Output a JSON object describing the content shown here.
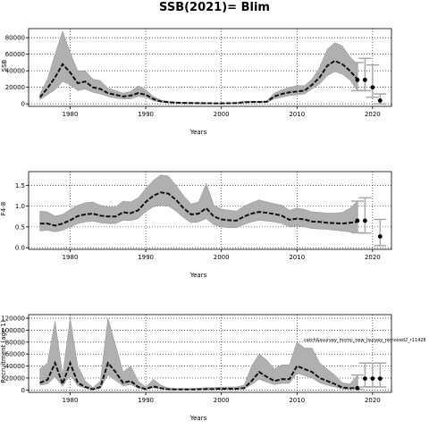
{
  "figure_title": "SSB(2021)= Blim",
  "chart_data": [
    {
      "type": "line",
      "xlabel": "Years",
      "ylabel": "SSB",
      "xlim": [
        1974.5,
        2022.5
      ],
      "ylim": [
        -3000,
        91000
      ],
      "xticks": [
        1980,
        1990,
        2000,
        2010,
        2020
      ],
      "yticks": [
        0,
        20000,
        40000,
        60000,
        80000
      ],
      "ytick_labels": [
        "0",
        "20000",
        "40000",
        "60000",
        "80000"
      ],
      "grid": true,
      "series": [
        {
          "x": [
            1976,
            1977,
            1978,
            1979,
            1980,
            1981,
            1982,
            1983,
            1984,
            1985,
            1986,
            1987,
            1988,
            1989,
            1990,
            1991,
            1992,
            1993,
            1994,
            1995,
            1996,
            1997,
            1998,
            1999,
            2000,
            2001,
            2002,
            2003,
            2004,
            2005,
            2006,
            2007,
            2008,
            2009,
            2010,
            2011,
            2012,
            2013,
            2014,
            2015,
            2016,
            2017,
            2018
          ],
          "y": [
            8000,
            19000,
            32000,
            48000,
            38000,
            25000,
            27000,
            20000,
            18000,
            13000,
            11000,
            9000,
            10000,
            13000,
            11000,
            6000,
            3000,
            2000,
            1500,
            1200,
            1000,
            900,
            800,
            700,
            700,
            800,
            1000,
            2000,
            2200,
            2200,
            2500,
            9000,
            12000,
            14000,
            15000,
            16000,
            23000,
            32000,
            46000,
            52000,
            48000,
            40000,
            30000
          ],
          "lower": [
            5000,
            11000,
            17000,
            27000,
            23000,
            16000,
            18000,
            14000,
            12000,
            9000,
            7000,
            6000,
            6000,
            9000,
            8000,
            4000,
            2000,
            1200,
            900,
            700,
            600,
            500,
            400,
            400,
            400,
            500,
            600,
            1300,
            1500,
            1500,
            1700,
            6000,
            8000,
            10000,
            11000,
            12000,
            18000,
            24000,
            34000,
            39000,
            36000,
            29000,
            16000
          ],
          "upper": [
            12000,
            30000,
            60000,
            88000,
            62000,
            40000,
            40000,
            30000,
            28000,
            19000,
            16000,
            13000,
            15000,
            22000,
            17000,
            9000,
            4500,
            3000,
            2200,
            1900,
            1600,
            1400,
            1300,
            1100,
            1100,
            1200,
            1500,
            3000,
            3200,
            3200,
            3600,
            13000,
            17000,
            20000,
            22000,
            22000,
            30000,
            44000,
            66000,
            74000,
            70000,
            57000,
            48000
          ]
        }
      ],
      "predicted": {
        "x": [
          2018,
          2019,
          2020,
          2021
        ],
        "y": [
          29000,
          29000,
          20000,
          4000
        ],
        "lower": [
          16000,
          16000,
          8000,
          0
        ],
        "upper": [
          50000,
          55000,
          47000,
          12000
        ]
      }
    },
    {
      "type": "line",
      "xlabel": "Years",
      "ylabel": "F4-8",
      "xlim": [
        1974.5,
        2022.5
      ],
      "ylim": [
        -0.04,
        1.83
      ],
      "xticks": [
        1980,
        1990,
        2000,
        2010,
        2020
      ],
      "yticks": [
        0.0,
        0.5,
        1.0,
        1.5
      ],
      "ytick_labels": [
        "0.0",
        "0.5",
        "1.0",
        "1.5"
      ],
      "grid": true,
      "series": [
        {
          "x": [
            1976,
            1977,
            1978,
            1979,
            1980,
            1981,
            1982,
            1983,
            1984,
            1985,
            1986,
            1987,
            1988,
            1989,
            1990,
            1991,
            1992,
            1993,
            1994,
            1995,
            1996,
            1997,
            1998,
            1999,
            2000,
            2001,
            2002,
            2003,
            2004,
            2005,
            2006,
            2007,
            2008,
            2009,
            2010,
            2011,
            2012,
            2013,
            2014,
            2015,
            2016,
            2017,
            2018
          ],
          "y": [
            0.58,
            0.58,
            0.53,
            0.58,
            0.66,
            0.76,
            0.8,
            0.82,
            0.77,
            0.75,
            0.75,
            0.85,
            0.83,
            0.9,
            1.1,
            1.25,
            1.33,
            1.3,
            1.15,
            0.95,
            0.8,
            0.82,
            0.95,
            0.75,
            0.68,
            0.66,
            0.65,
            0.75,
            0.82,
            0.86,
            0.84,
            0.81,
            0.77,
            0.67,
            0.7,
            0.68,
            0.63,
            0.62,
            0.6,
            0.59,
            0.58,
            0.6,
            0.62
          ],
          "lower": [
            0.4,
            0.42,
            0.38,
            0.42,
            0.5,
            0.58,
            0.62,
            0.64,
            0.6,
            0.58,
            0.58,
            0.66,
            0.65,
            0.7,
            0.87,
            0.98,
            1.02,
            1.0,
            0.88,
            0.72,
            0.6,
            0.62,
            0.7,
            0.55,
            0.5,
            0.48,
            0.48,
            0.56,
            0.62,
            0.66,
            0.64,
            0.62,
            0.58,
            0.5,
            0.52,
            0.5,
            0.46,
            0.45,
            0.44,
            0.42,
            0.4,
            0.38,
            0.35
          ],
          "upper": [
            0.88,
            0.86,
            0.76,
            0.8,
            0.92,
            1.02,
            1.08,
            1.1,
            1.02,
            0.98,
            0.98,
            1.12,
            1.1,
            1.2,
            1.42,
            1.62,
            1.75,
            1.72,
            1.5,
            1.25,
            1.05,
            1.1,
            1.55,
            1.02,
            0.93,
            0.9,
            0.88,
            1.0,
            1.08,
            1.15,
            1.1,
            1.06,
            1.02,
            0.9,
            0.95,
            0.92,
            0.86,
            0.85,
            0.83,
            0.83,
            0.85,
            0.95,
            1.12
          ]
        }
      ],
      "predicted": {
        "x": [
          2018,
          2019,
          2021
        ],
        "y": [
          0.65,
          0.65,
          0.27
        ],
        "lower": [
          0.36,
          0.35,
          0.05
        ],
        "upper": [
          1.12,
          1.2,
          0.68
        ]
      }
    },
    {
      "type": "line",
      "xlabel": "Years",
      "ylabel": "Recruitment (age 1)",
      "annotation": "catch&ssurvey_mcmc_new_lsurvey_removed2_r11428",
      "xlim": [
        1974.5,
        2022.5
      ],
      "ylim": [
        -4000,
        126000
      ],
      "xticks": [
        1980,
        1990,
        2000,
        2010,
        2020
      ],
      "yticks": [
        0,
        20000,
        40000,
        60000,
        80000,
        100000,
        120000
      ],
      "ytick_labels": [
        "0",
        "20000",
        "40000",
        "60000",
        "80000",
        "100000",
        "120000"
      ],
      "grid": true,
      "series": [
        {
          "x": [
            1976,
            1977,
            1978,
            1979,
            1980,
            1981,
            1982,
            1983,
            1984,
            1985,
            1986,
            1987,
            1988,
            1989,
            1990,
            1991,
            1992,
            1993,
            1994,
            1995,
            1996,
            1997,
            1998,
            1999,
            2000,
            2001,
            2002,
            2003,
            2004,
            2005,
            2006,
            2007,
            2008,
            2009,
            2010,
            2011,
            2012,
            2013,
            2014,
            2015,
            2016,
            2017,
            2018
          ],
          "y": [
            12000,
            17000,
            45000,
            10000,
            45000,
            12000,
            5000,
            1000,
            5000,
            45000,
            30000,
            12000,
            15000,
            5000,
            1500,
            6000,
            3000,
            1000,
            800,
            800,
            800,
            1000,
            1500,
            1500,
            2000,
            2000,
            2000,
            3000,
            15000,
            30000,
            22000,
            15000,
            18000,
            18000,
            40000,
            35000,
            30000,
            20000,
            15000,
            10000,
            4000,
            3000,
            3000
          ],
          "lower": [
            8000,
            10000,
            22000,
            6000,
            25000,
            7000,
            3000,
            500,
            3000,
            25000,
            16000,
            7000,
            9000,
            3000,
            800,
            3500,
            1800,
            600,
            400,
            400,
            400,
            600,
            900,
            900,
            1200,
            1200,
            1200,
            2000,
            9000,
            18000,
            13000,
            9000,
            11000,
            11000,
            28000,
            24000,
            20000,
            12000,
            8000,
            5000,
            1500,
            1000,
            800
          ],
          "upper": [
            35000,
            45000,
            115000,
            25000,
            120000,
            40000,
            15000,
            4000,
            15000,
            120000,
            75000,
            30000,
            40000,
            15000,
            5000,
            18000,
            8000,
            3500,
            2500,
            2500,
            2500,
            3000,
            4000,
            4000,
            5000,
            5000,
            5000,
            8000,
            40000,
            60000,
            50000,
            35000,
            42000,
            42000,
            80000,
            70000,
            70000,
            45000,
            35000,
            25000,
            12000,
            10000,
            25000
          ]
        }
      ],
      "predicted": {
        "x": [
          2018,
          2019,
          2020,
          2021
        ],
        "y": [
          3000,
          19000,
          19000,
          19000
        ],
        "lower": [
          1000,
          5000,
          5000,
          5000
        ],
        "upper": [
          25000,
          45000,
          45000,
          45000
        ]
      }
    }
  ]
}
